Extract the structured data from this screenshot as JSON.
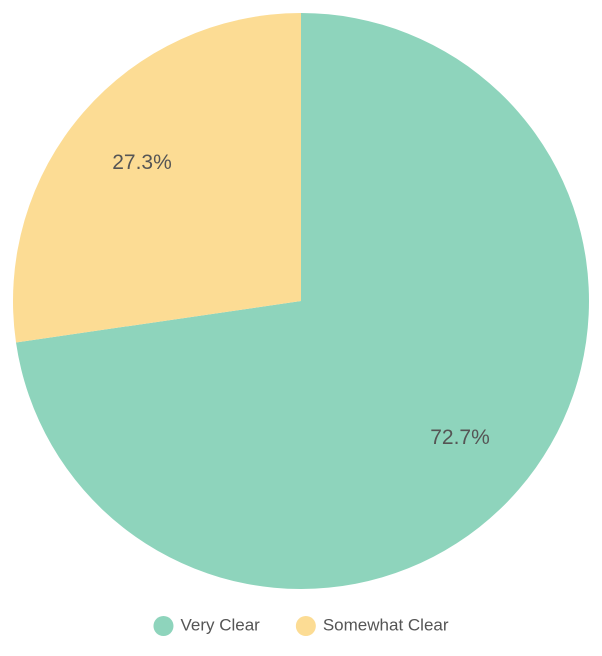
{
  "chart_data": {
    "type": "pie",
    "categories": [
      "Very Clear",
      "Somewhat Clear"
    ],
    "values": [
      72.7,
      27.3
    ],
    "value_labels": [
      "72.7%",
      "27.3%"
    ],
    "colors": [
      "#8ed4bc",
      "#fcdc94"
    ],
    "legend": "bottom"
  }
}
